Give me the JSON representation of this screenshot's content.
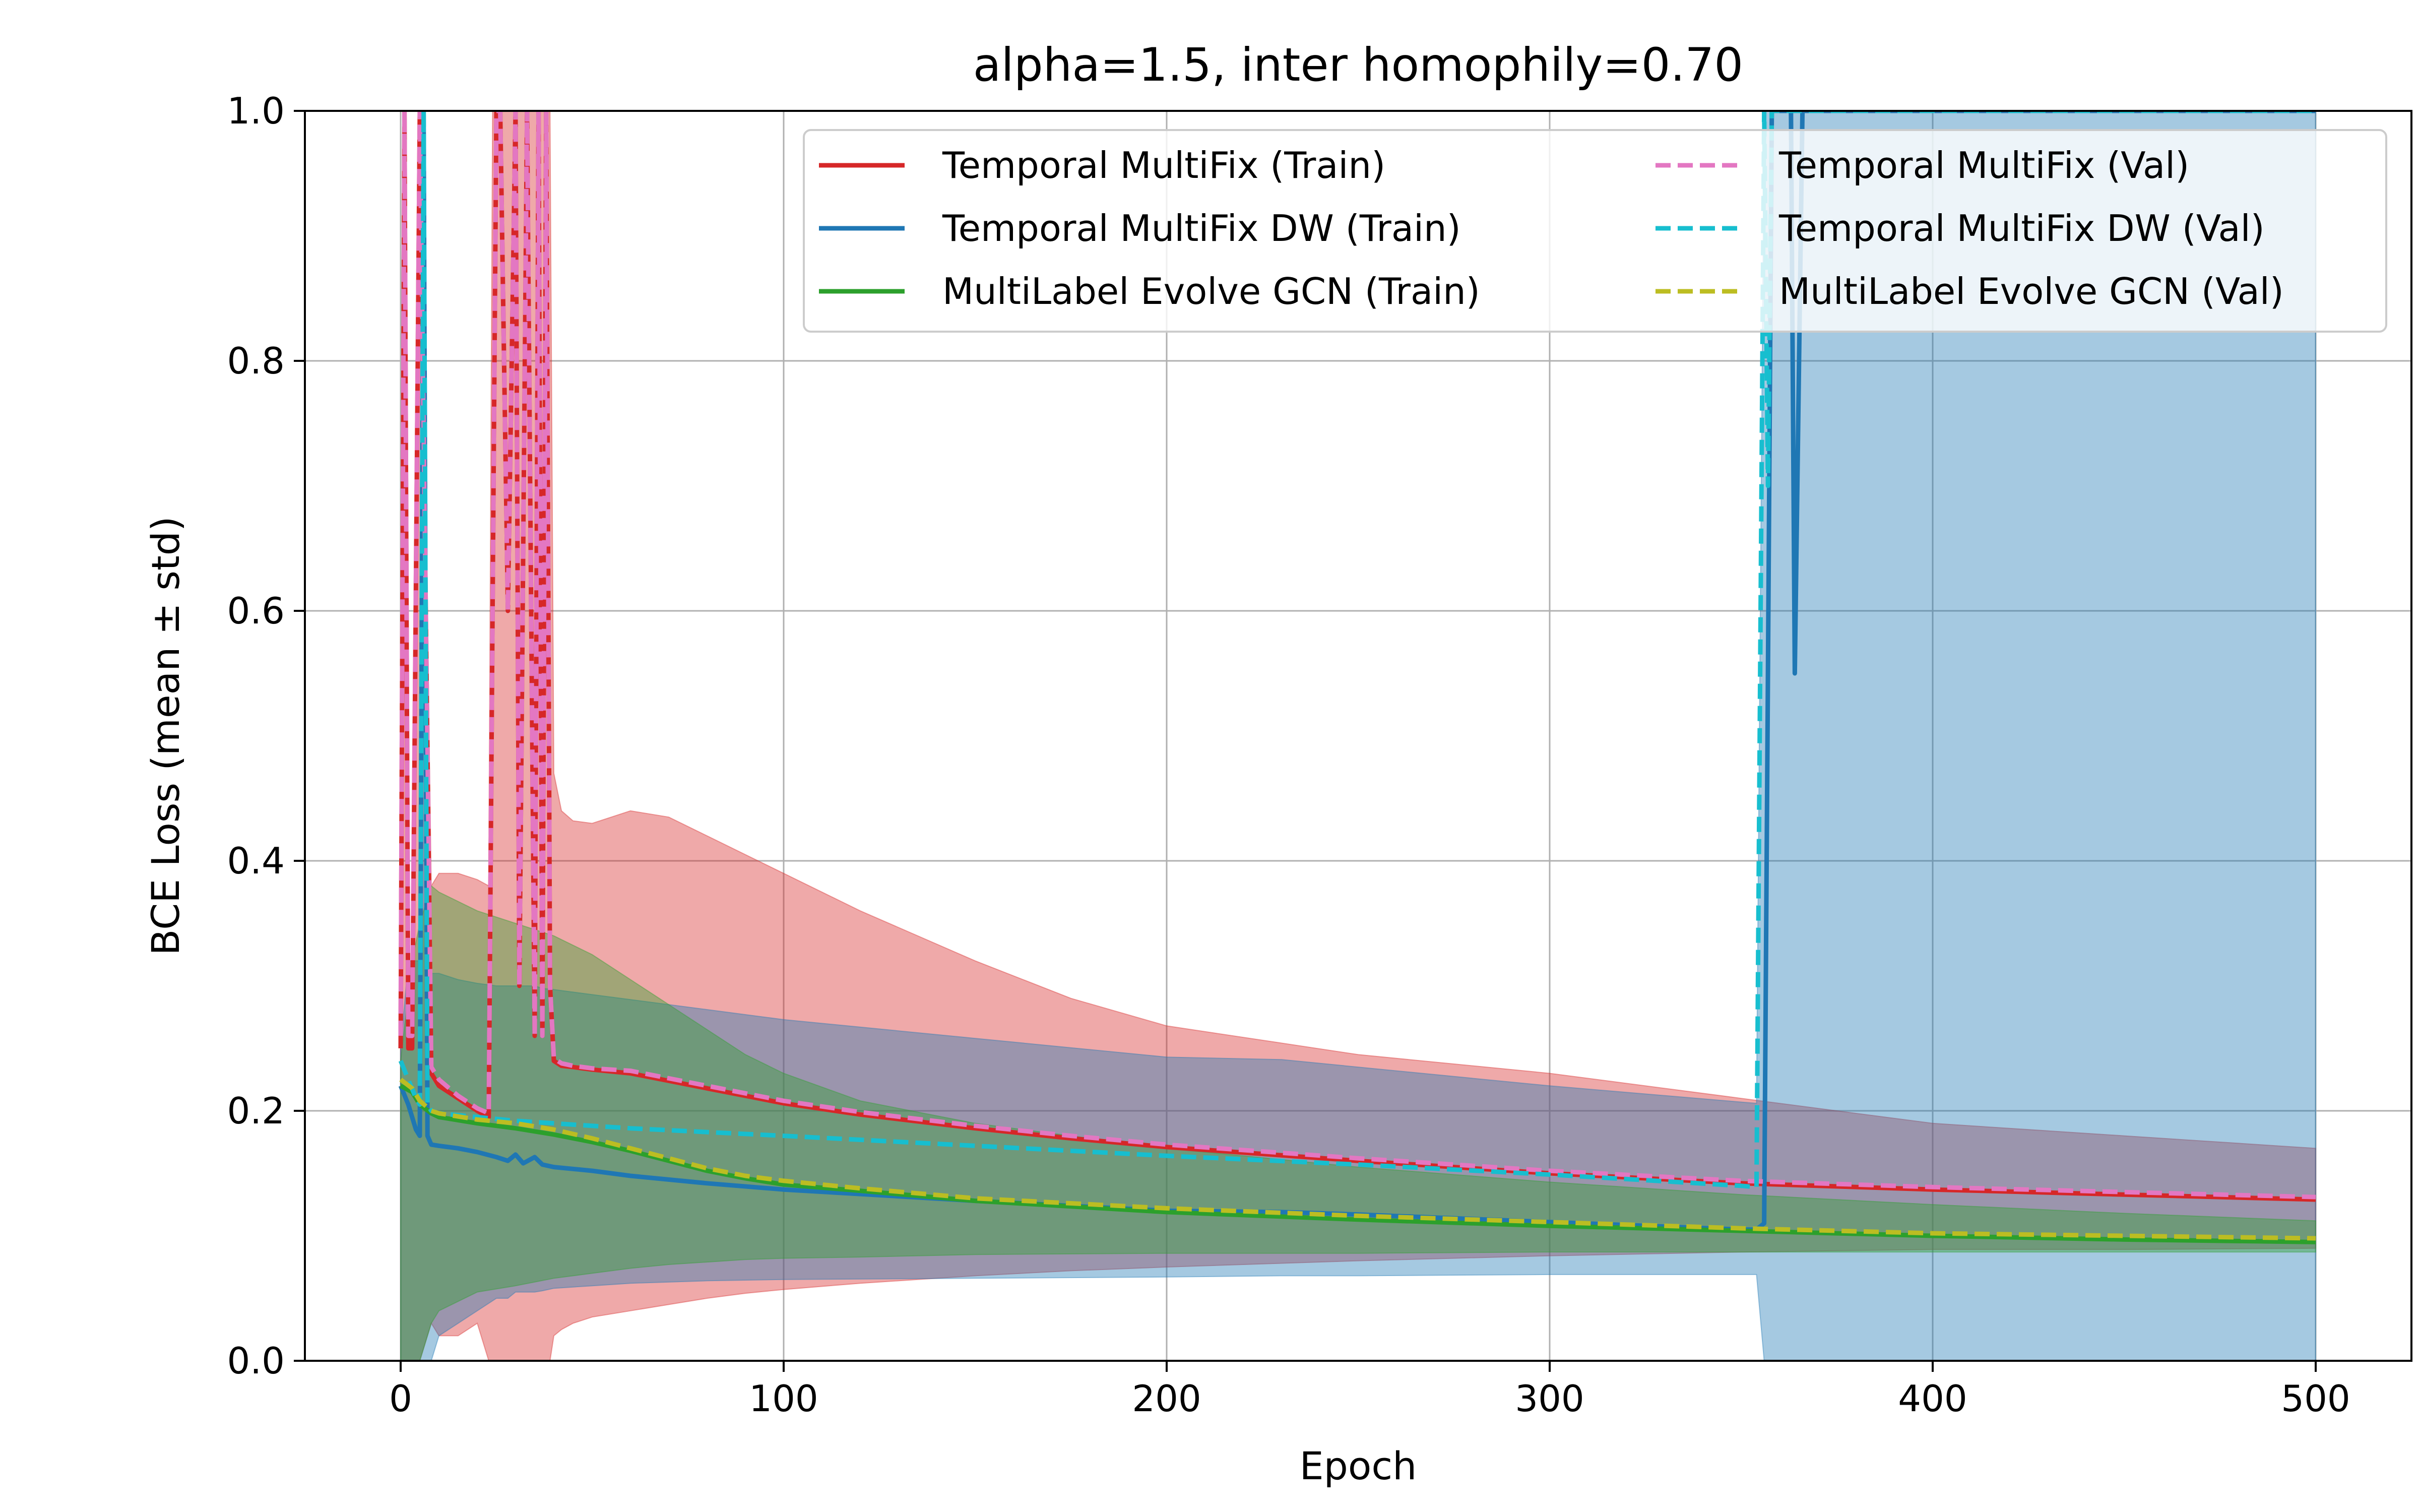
{
  "chart_data": {
    "type": "line",
    "title": "alpha=1.5, inter homophily=0.70",
    "xlabel": "Epoch",
    "ylabel": "BCE Loss (mean ± std)",
    "xlim": [
      -25,
      525
    ],
    "ylim": [
      0.0,
      1.0
    ],
    "xticks": [
      0,
      100,
      200,
      300,
      400,
      500
    ],
    "yticks": [
      0.0,
      0.2,
      0.4,
      0.6,
      0.8,
      1.0
    ],
    "xtick_labels": [
      "0",
      "100",
      "200",
      "300",
      "400",
      "500"
    ],
    "ytick_labels": [
      "0.0",
      "0.2",
      "0.4",
      "0.6",
      "0.8",
      "1.0"
    ],
    "grid": true,
    "legend_placement": "top-right",
    "legend_columns": 2,
    "series": [
      {
        "name": "Temporal MultiFix (Train)",
        "color": "#d62728",
        "style": "solid",
        "x": [
          0,
          1,
          2,
          3,
          5,
          8,
          10,
          15,
          20,
          23,
          24,
          25,
          26,
          28,
          30,
          31,
          33,
          35,
          36,
          37,
          38,
          39,
          40,
          42,
          45,
          50,
          60,
          70,
          80,
          90,
          100,
          120,
          150,
          175,
          200,
          250,
          300,
          350,
          400,
          450,
          500
        ],
        "y": [
          0.25,
          1.0,
          0.25,
          0.25,
          1.0,
          0.23,
          0.22,
          0.21,
          0.2,
          0.195,
          0.6,
          1.0,
          1.0,
          0.6,
          1.0,
          0.3,
          1.0,
          0.26,
          1.0,
          0.26,
          1.0,
          0.3,
          0.24,
          0.236,
          0.235,
          0.233,
          0.23,
          0.224,
          0.218,
          0.212,
          0.206,
          0.197,
          0.186,
          0.178,
          0.171,
          0.16,
          0.15,
          0.142,
          0.137,
          0.133,
          0.129
        ],
        "band_low": [
          0.0,
          0.0,
          0.0,
          0.0,
          0.0,
          0.03,
          0.02,
          0.02,
          0.03,
          0.0,
          0.0,
          0.0,
          0.0,
          0.0,
          0.0,
          0.0,
          0.0,
          0.0,
          0.0,
          0.0,
          0.0,
          0.0,
          0.02,
          0.025,
          0.03,
          0.035,
          0.04,
          0.045,
          0.05,
          0.054,
          0.057,
          0.062,
          0.068,
          0.072,
          0.075,
          0.08,
          0.084,
          0.087,
          0.089,
          0.089,
          0.09
        ],
        "band_high": [
          0.32,
          1.0,
          0.32,
          0.32,
          1.0,
          0.38,
          0.39,
          0.39,
          0.385,
          0.38,
          1.0,
          1.0,
          1.0,
          1.0,
          1.0,
          1.0,
          1.0,
          1.0,
          1.0,
          1.0,
          1.0,
          1.0,
          0.47,
          0.44,
          0.432,
          0.43,
          0.44,
          0.435,
          0.42,
          0.405,
          0.39,
          0.36,
          0.32,
          0.29,
          0.268,
          0.245,
          0.23,
          0.21,
          0.19,
          0.18,
          0.17
        ]
      },
      {
        "name": "Temporal MultiFix DW (Train)",
        "color": "#1f77b4",
        "style": "solid",
        "x": [
          0,
          2,
          3,
          4,
          5,
          6,
          7,
          8,
          10,
          15,
          20,
          25,
          28,
          30,
          32,
          35,
          37,
          40,
          50,
          60,
          80,
          100,
          150,
          200,
          230,
          250,
          300,
          350,
          354,
          356,
          358,
          360,
          362,
          363,
          364,
          366,
          368,
          370,
          380,
          400,
          450,
          500
        ],
        "y": [
          0.22,
          0.205,
          0.195,
          0.185,
          0.18,
          1.0,
          0.18,
          0.173,
          0.172,
          0.17,
          0.167,
          0.163,
          0.16,
          0.165,
          0.158,
          0.163,
          0.157,
          0.155,
          0.152,
          0.148,
          0.142,
          0.137,
          0.128,
          0.12,
          0.119,
          0.117,
          0.111,
          0.105,
          0.105,
          0.11,
          1.0,
          1.0,
          1.0,
          1.0,
          0.55,
          1.0,
          1.0,
          1.0,
          1.0,
          1.0,
          1.0,
          1.0
        ],
        "band_low": [
          0.0,
          0.0,
          0.0,
          0.0,
          0.0,
          0.0,
          0.0,
          0.0,
          0.02,
          0.03,
          0.04,
          0.05,
          0.05,
          0.055,
          0.055,
          0.055,
          0.056,
          0.058,
          0.06,
          0.062,
          0.064,
          0.065,
          0.066,
          0.067,
          0.068,
          0.068,
          0.069,
          0.069,
          0.069,
          0.0,
          0.0,
          0.0,
          0.0,
          0.0,
          0.0,
          0.0,
          0.0,
          0.0,
          0.0,
          0.0,
          0.0,
          0.0
        ],
        "band_high": [
          0.25,
          0.32,
          0.32,
          0.32,
          0.32,
          1.0,
          0.32,
          0.31,
          0.31,
          0.305,
          0.302,
          0.3,
          0.3,
          0.3,
          0.3,
          0.3,
          0.298,
          0.297,
          0.293,
          0.289,
          0.281,
          0.273,
          0.258,
          0.243,
          0.241,
          0.235,
          0.22,
          0.207,
          0.206,
          1.0,
          1.0,
          1.0,
          1.0,
          1.0,
          1.0,
          1.0,
          1.0,
          1.0,
          1.0,
          1.0,
          1.0,
          1.0
        ]
      },
      {
        "name": "MultiLabel Evolve GCN (Train)",
        "color": "#2ca02c",
        "style": "solid",
        "x": [
          0,
          3,
          5,
          8,
          10,
          20,
          30,
          40,
          50,
          60,
          70,
          80,
          90,
          100,
          120,
          150,
          200,
          250,
          300,
          350,
          400,
          450,
          500
        ],
        "y": [
          0.22,
          0.215,
          0.205,
          0.198,
          0.195,
          0.19,
          0.186,
          0.181,
          0.175,
          0.168,
          0.16,
          0.152,
          0.146,
          0.141,
          0.136,
          0.128,
          0.119,
          0.113,
          0.108,
          0.104,
          0.1,
          0.097,
          0.095
        ],
        "band_low": [
          0.0,
          0.0,
          0.0,
          0.03,
          0.04,
          0.055,
          0.06,
          0.066,
          0.07,
          0.074,
          0.077,
          0.079,
          0.081,
          0.082,
          0.083,
          0.085,
          0.086,
          0.086,
          0.087,
          0.087,
          0.087,
          0.087,
          0.087
        ],
        "band_high": [
          0.24,
          0.32,
          0.35,
          0.38,
          0.375,
          0.36,
          0.35,
          0.34,
          0.325,
          0.305,
          0.285,
          0.265,
          0.245,
          0.23,
          0.208,
          0.19,
          0.17,
          0.155,
          0.143,
          0.133,
          0.125,
          0.118,
          0.112
        ]
      },
      {
        "name": "Temporal MultiFix (Val)",
        "color": "#e377c2",
        "style": "dashed",
        "x": [
          0,
          1,
          2,
          3,
          5,
          8,
          10,
          15,
          20,
          23,
          24,
          25,
          26,
          28,
          30,
          31,
          33,
          35,
          36,
          37,
          38,
          39,
          40,
          42,
          45,
          50,
          60,
          70,
          80,
          90,
          100,
          120,
          150,
          175,
          200,
          250,
          300,
          350,
          400,
          450,
          500
        ],
        "y": [
          0.26,
          1.0,
          0.26,
          0.26,
          1.0,
          0.235,
          0.225,
          0.212,
          0.202,
          0.198,
          0.6,
          1.0,
          1.0,
          0.6,
          1.0,
          0.3,
          1.0,
          0.26,
          1.0,
          0.26,
          1.0,
          0.3,
          0.242,
          0.238,
          0.236,
          0.234,
          0.232,
          0.226,
          0.22,
          0.214,
          0.208,
          0.199,
          0.188,
          0.18,
          0.173,
          0.162,
          0.152,
          0.144,
          0.139,
          0.135,
          0.131
        ]
      },
      {
        "name": "Temporal MultiFix DW (Val)",
        "color": "#17becf",
        "style": "dashed",
        "x": [
          0,
          2,
          4,
          5,
          6,
          7,
          8,
          10,
          20,
          30,
          40,
          50,
          60,
          80,
          100,
          150,
          200,
          250,
          300,
          350,
          354,
          356,
          357,
          358,
          500
        ],
        "y": [
          0.24,
          0.225,
          0.21,
          0.205,
          1.0,
          0.205,
          0.2,
          0.198,
          0.195,
          0.192,
          0.19,
          0.188,
          0.186,
          0.183,
          0.18,
          0.172,
          0.164,
          0.157,
          0.149,
          0.14,
          0.139,
          1.0,
          0.7,
          1.0,
          1.0
        ]
      },
      {
        "name": "MultiLabel Evolve GCN (Val)",
        "color": "#bcbd22",
        "style": "dashed",
        "x": [
          0,
          3,
          5,
          8,
          10,
          20,
          30,
          40,
          50,
          60,
          70,
          80,
          90,
          100,
          120,
          150,
          200,
          250,
          300,
          350,
          400,
          450,
          500
        ],
        "y": [
          0.225,
          0.218,
          0.208,
          0.2,
          0.198,
          0.193,
          0.19,
          0.185,
          0.178,
          0.17,
          0.162,
          0.154,
          0.148,
          0.144,
          0.138,
          0.13,
          0.122,
          0.116,
          0.111,
          0.106,
          0.102,
          0.1,
          0.098
        ]
      }
    ]
  }
}
